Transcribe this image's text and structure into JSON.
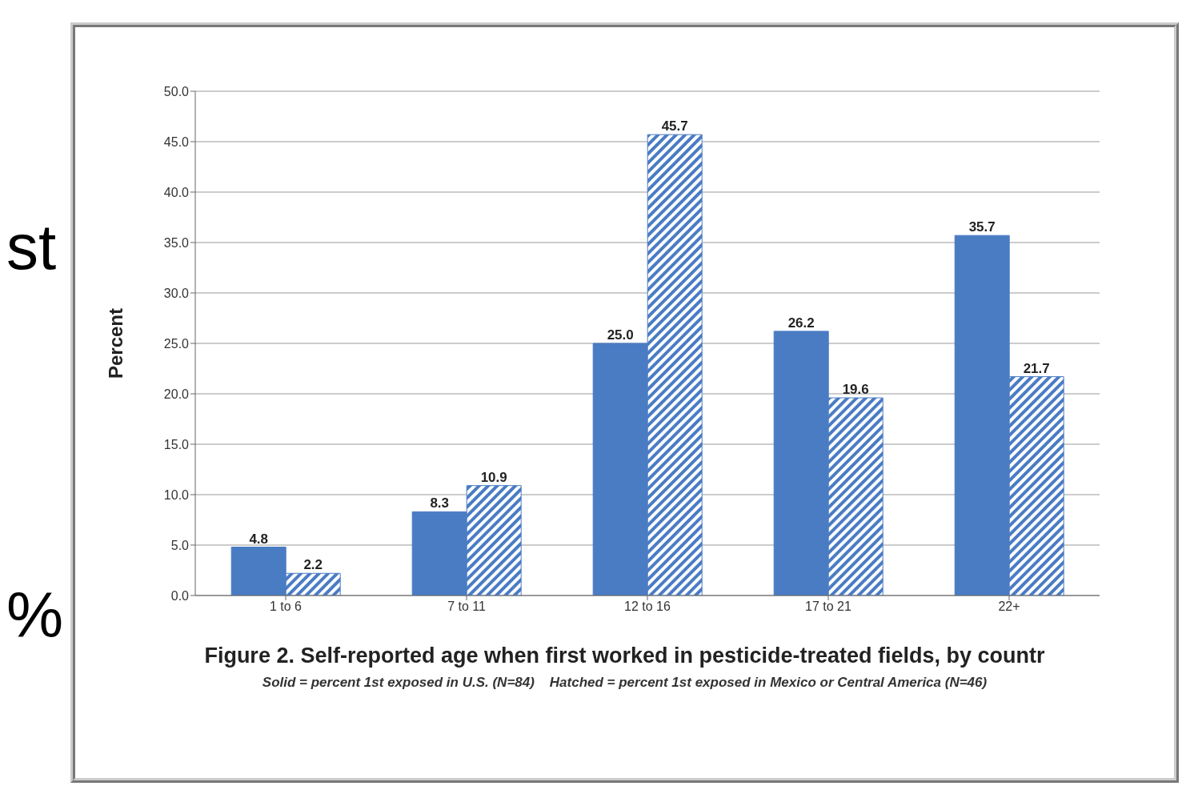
{
  "chart_data": {
    "type": "bar",
    "title": "Figure 2.  Self-reported age when first worked in pesticide-treated fields, by countr",
    "subtitle": "Solid = percent 1st exposed in U.S. (N=84)    Hatched = percent 1st exposed in Mexico or Central America (N=46)",
    "ylabel": "Percent",
    "categories": [
      "1 to 6",
      "7 to 11",
      "12 to 16",
      "17 to 21",
      "22+"
    ],
    "series": [
      {
        "color": "#4a7cc4",
        "values": [
          4.8,
          8.3,
          25.0,
          26.2,
          35.7
        ],
        "value_labels": [
          "4.8",
          "8.3",
          "25.0",
          "26.2",
          "35.7"
        ]
      },
      {
        "color": "#4a7cc4",
        "values": [
          2.2,
          10.9,
          45.7,
          19.6,
          21.7
        ],
        "value_labels": [
          "2.2",
          "10.9",
          "45.7",
          "19.6",
          "21.7"
        ]
      }
    ],
    "ylim": [
      0,
      50
    ],
    "yticks": [
      {
        "value": 0,
        "label": "0.0"
      },
      {
        "value": 5,
        "label": "5.0"
      },
      {
        "value": 10,
        "label": "10.0"
      },
      {
        "value": 15,
        "label": "15.0"
      },
      {
        "value": 20,
        "label": "20.0"
      },
      {
        "value": 25,
        "label": "25.0"
      },
      {
        "value": 30,
        "label": "30.0"
      },
      {
        "value": 35,
        "label": "35.0"
      },
      {
        "value": 40,
        "label": "40.0"
      },
      {
        "value": 45,
        "label": "45.0"
      },
      {
        "value": 50,
        "label": "50.0"
      }
    ],
    "grid": "y",
    "legend": false,
    "annotations": [
      "st",
      "%"
    ]
  }
}
